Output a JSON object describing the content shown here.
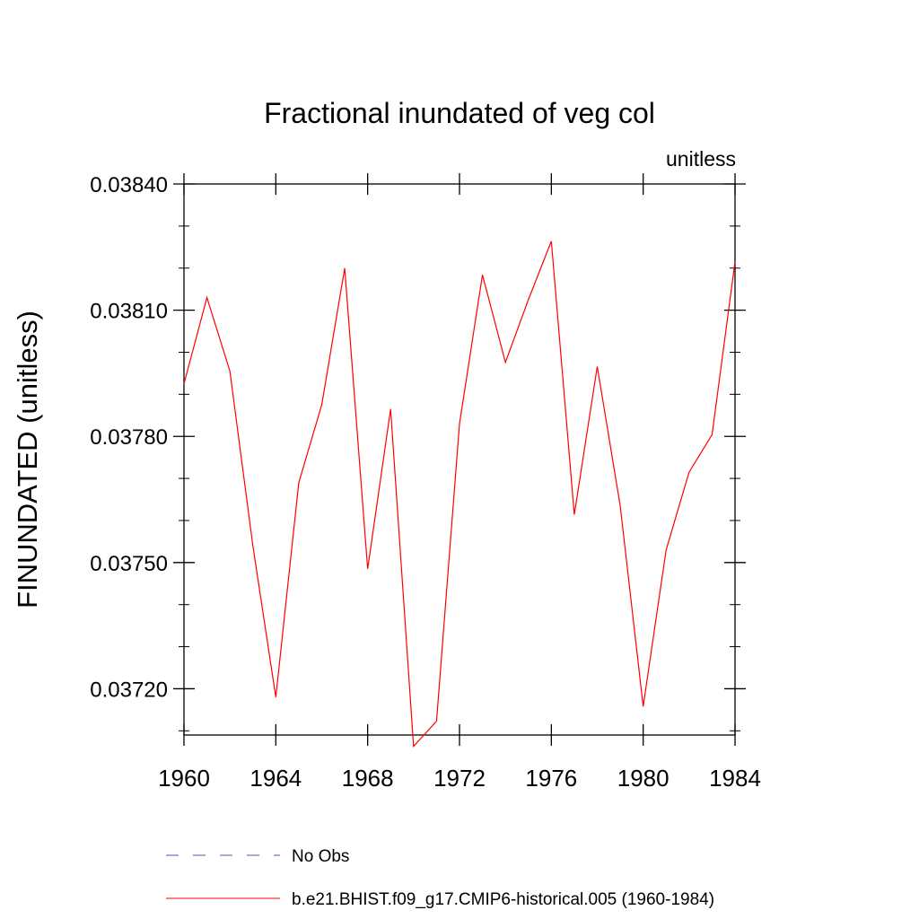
{
  "chart_data": {
    "type": "line",
    "title": "Fractional inundated of veg col",
    "units_label": "unitless",
    "ylabel": "FINUNDATED  (unitless)",
    "xlabel": "",
    "xlim": [
      1960,
      1984
    ],
    "ylim": [
      0.03709,
      0.0384
    ],
    "x_ticks": [
      1960,
      1964,
      1968,
      1972,
      1976,
      1980,
      1984
    ],
    "x_tick_labels": [
      "1960",
      "1964",
      "1968",
      "1972",
      "1976",
      "1980",
      "1984"
    ],
    "y_ticks": [
      0.0372,
      0.0375,
      0.0378,
      0.0381,
      0.0384
    ],
    "y_tick_labels": [
      "0.03720",
      "0.03750",
      "0.03780",
      "0.03810",
      "0.03840"
    ],
    "grid": false,
    "legend_position": "bottom",
    "series": [
      {
        "name": "No Obs",
        "color": "#5a4fa8",
        "dash": "dashed",
        "x": [],
        "values": []
      },
      {
        "name": "b.e21.BHIST.f09_g17.CMIP6-historical.005 (1960-1984)",
        "color": "#ff0000",
        "dash": "solid",
        "x": [
          1960,
          1961,
          1962,
          1963,
          1964,
          1965,
          1966,
          1967,
          1968,
          1969,
          1970,
          1971,
          1972,
          1973,
          1974,
          1975,
          1976,
          1977,
          1978,
          1979,
          1980,
          1981,
          1982,
          1983,
          1984
        ],
        "values": [
          0.037925,
          0.03813,
          0.037955,
          0.03754,
          0.03718,
          0.03769,
          0.037875,
          0.0382,
          0.037485,
          0.037865,
          0.037063,
          0.037123,
          0.03783,
          0.038184,
          0.037976,
          0.038125,
          0.038264,
          0.037614,
          0.037966,
          0.037635,
          0.037158,
          0.03753,
          0.037715,
          0.037804,
          0.038215
        ]
      }
    ]
  }
}
